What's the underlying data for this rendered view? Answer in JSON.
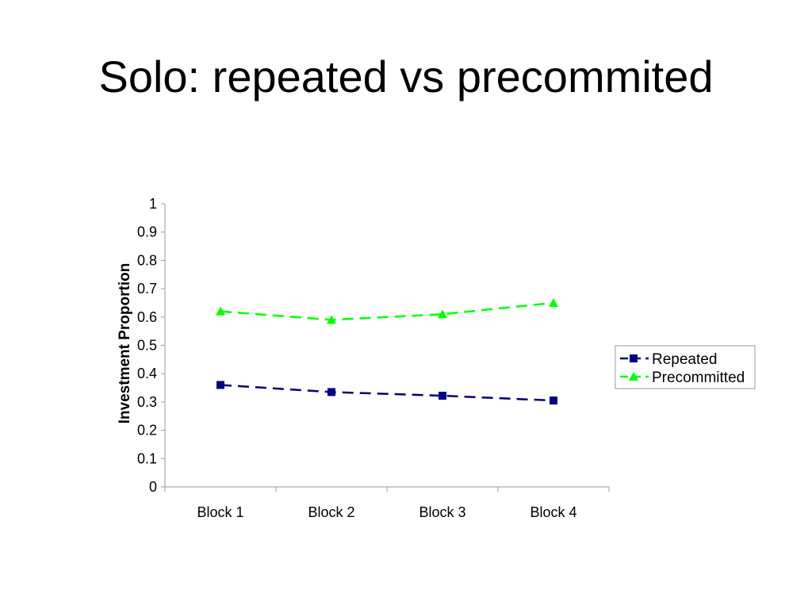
{
  "slide": {
    "title": "Solo: repeated vs precommited"
  },
  "chart_data": {
    "type": "line",
    "title": "",
    "xlabel": "",
    "ylabel": "Investment Proportion",
    "categories": [
      "Block 1",
      "Block 2",
      "Block 3",
      "Block 4"
    ],
    "yticks": [
      "0",
      "0.1",
      "0.2",
      "0.3",
      "0.4",
      "0.5",
      "0.6",
      "0.7",
      "0.8",
      "0.9",
      "1"
    ],
    "ylim": [
      0,
      1
    ],
    "grid": false,
    "legend_position": "right",
    "series": [
      {
        "name": "Repeated",
        "values": [
          0.36,
          0.335,
          0.322,
          0.305
        ],
        "color": "#000080",
        "marker": "square",
        "dash": true
      },
      {
        "name": "Precommitted",
        "values": [
          0.62,
          0.59,
          0.61,
          0.65
        ],
        "color": "#00ff00",
        "marker": "triangle",
        "dash": true
      }
    ]
  }
}
